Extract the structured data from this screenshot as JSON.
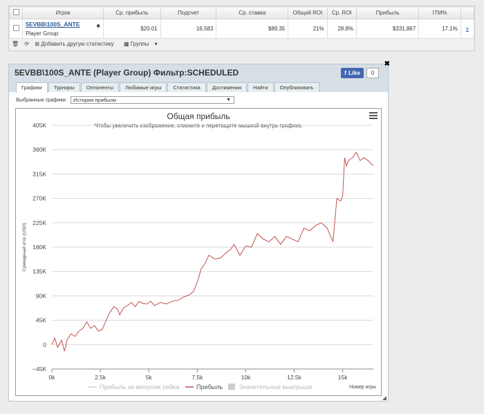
{
  "stats": {
    "headers": [
      "Игрок",
      "Ср. прибыль",
      "Подсчет",
      "Ср. ставка",
      "Общий ROI",
      "Ср. ROI",
      "Прибыль",
      "ITM%"
    ],
    "row": {
      "player": "5EVBB\\100S_ANTE",
      "group": "Player Group",
      "avg_profit": "$20.01",
      "count": "16,583",
      "avg_stake": "$89.35",
      "total_roi": "21%",
      "avg_roi": "28.8%",
      "profit": "$331,867",
      "itm": "17.1%",
      "remove": "x"
    },
    "toolbar": {
      "add_stats": "Добавить другую статистику",
      "groups": "Группы"
    }
  },
  "window": {
    "title": "5EVBB\\100S_ANTE (Player Group) Фильтр:SCHEDULED",
    "like": "Like",
    "like_count": "0",
    "tabs": [
      "Графики",
      "Турниры",
      "Оппоненты",
      "Любимые игры",
      "Статистика",
      "Достижения",
      "Найти",
      "Опубликовать"
    ],
    "select_label": "Выбранные графики:",
    "select_value": "История прибыли"
  },
  "chart_data": {
    "type": "line",
    "title": "Общая прибыль",
    "subtitle": "Чтобы увеличить изображение, кликните и перетащите мышкой внутрь графика.",
    "ylabel": "Суммарный итог (USD)",
    "xlabel": "Номер игры",
    "xlim": [
      0,
      16583
    ],
    "ylim": [
      -45000,
      405000
    ],
    "x_ticks": [
      "0k",
      "2.5k",
      "5k",
      "7.5k",
      "10k",
      "12.5k",
      "15k"
    ],
    "y_ticks": [
      "405K",
      "360K",
      "315K",
      "270K",
      "225K",
      "180K",
      "135K",
      "90K",
      "45K",
      "0",
      "−45K"
    ],
    "legend": [
      "Прибыль за минусом рейка",
      "Прибыль",
      "Значительные выигрыши"
    ],
    "series": [
      {
        "name": "Прибыль",
        "color": "#c0504d",
        "x": [
          0,
          150,
          300,
          500,
          650,
          800,
          1000,
          1200,
          1400,
          1600,
          1800,
          2000,
          2200,
          2400,
          2600,
          2800,
          3000,
          3200,
          3400,
          3500,
          3700,
          3900,
          4100,
          4300,
          4500,
          4700,
          4900,
          5100,
          5300,
          5600,
          5900,
          6200,
          6500,
          6800,
          7100,
          7300,
          7500,
          7700,
          7900,
          8100,
          8400,
          8700,
          9000,
          9200,
          9400,
          9700,
          10000,
          10300,
          10600,
          10900,
          11200,
          11500,
          11800,
          12100,
          12400,
          12700,
          13000,
          13300,
          13600,
          13900,
          14200,
          14500,
          14700,
          14900,
          15000,
          15100,
          15200,
          15300,
          15500,
          15700,
          15900,
          16100,
          16300,
          16583
        ],
        "y": [
          0,
          12000,
          -5000,
          8000,
          -12000,
          10000,
          20000,
          15000,
          25000,
          30000,
          42000,
          30000,
          35000,
          25000,
          28000,
          45000,
          60000,
          70000,
          65000,
          55000,
          68000,
          72000,
          78000,
          70000,
          80000,
          76000,
          75000,
          80000,
          72000,
          78000,
          75000,
          80000,
          82000,
          88000,
          92000,
          98000,
          115000,
          140000,
          150000,
          165000,
          158000,
          160000,
          170000,
          175000,
          185000,
          165000,
          182000,
          180000,
          205000,
          195000,
          190000,
          200000,
          185000,
          200000,
          195000,
          190000,
          215000,
          210000,
          220000,
          225000,
          215000,
          190000,
          270000,
          265000,
          275000,
          345000,
          330000,
          340000,
          345000,
          355000,
          340000,
          345000,
          340000,
          330000
        ]
      }
    ]
  }
}
